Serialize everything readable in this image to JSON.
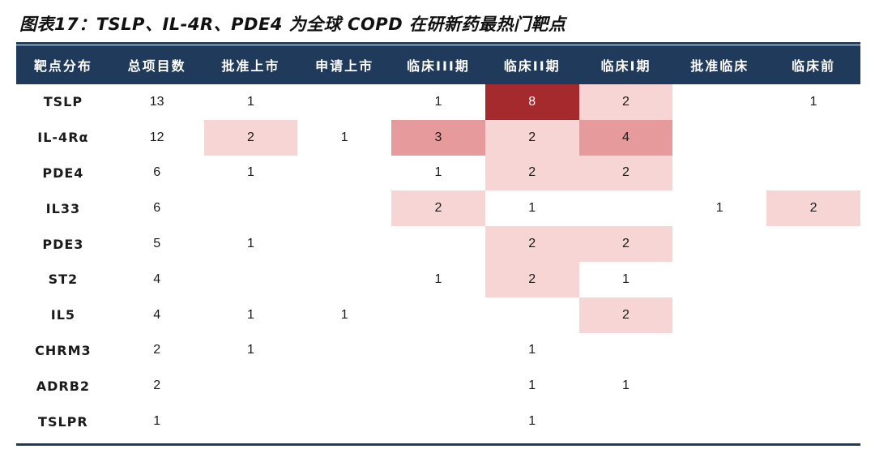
{
  "title": "图表17：TSLP、IL-4R、PDE4 为全球 COPD 在研新药最热门靶点",
  "chart_data": {
    "type": "table",
    "columns": [
      "靶点分布",
      "总项目数",
      "批准上市",
      "申请上市",
      "临床III期",
      "临床II期",
      "临床I期",
      "批准临床",
      "临床前"
    ],
    "rows": [
      [
        "TSLP",
        "13",
        "1",
        "",
        "1",
        "8",
        "2",
        "",
        "1"
      ],
      [
        "IL-4Rα",
        "12",
        "2",
        "1",
        "3",
        "2",
        "4",
        "",
        ""
      ],
      [
        "PDE4",
        "6",
        "1",
        "",
        "1",
        "2",
        "2",
        "",
        ""
      ],
      [
        "IL33",
        "6",
        "",
        "",
        "2",
        "1",
        "",
        "1",
        "2"
      ],
      [
        "PDE3",
        "5",
        "1",
        "",
        "",
        "2",
        "2",
        "",
        ""
      ],
      [
        "ST2",
        "4",
        "",
        "",
        "1",
        "2",
        "1",
        "",
        ""
      ],
      [
        "IL5",
        "4",
        "1",
        "1",
        "",
        "",
        "2",
        "",
        ""
      ],
      [
        "CHRM3",
        "2",
        "1",
        "",
        "",
        "1",
        "",
        "",
        ""
      ],
      [
        "ADRB2",
        "2",
        "",
        "",
        "",
        "1",
        "1",
        "",
        ""
      ],
      [
        "TSLPR",
        "1",
        "",
        "",
        "",
        "1",
        "",
        "",
        ""
      ]
    ],
    "shaded_rows": [
      [
        null,
        null,
        null,
        null,
        null,
        "#a52a2e",
        "#f7d5d4",
        null,
        null
      ],
      [
        null,
        null,
        "#f7d5d4",
        null,
        "#e69a9c",
        "#f7d5d4",
        "#e69a9c",
        null,
        null
      ],
      [
        null,
        null,
        null,
        null,
        null,
        "#f7d5d4",
        "#f7d5d4",
        null,
        null
      ],
      [
        null,
        null,
        null,
        null,
        "#f7d5d4",
        null,
        null,
        null,
        "#f7d5d4"
      ],
      [
        null,
        null,
        null,
        null,
        null,
        "#f7d5d4",
        "#f7d5d4",
        null,
        null
      ],
      [
        null,
        null,
        null,
        null,
        null,
        "#f7d5d4",
        null,
        null,
        null
      ],
      [
        null,
        null,
        null,
        null,
        null,
        null,
        "#f7d5d4",
        null,
        null
      ],
      [
        null,
        null,
        null,
        null,
        null,
        null,
        null,
        null,
        null
      ],
      [
        null,
        null,
        null,
        null,
        null,
        null,
        null,
        null,
        null
      ],
      [
        null,
        null,
        null,
        null,
        null,
        null,
        null,
        null,
        null
      ]
    ],
    "light_text_color": "#ffffff",
    "header_bg": "#1f3a5a"
  }
}
